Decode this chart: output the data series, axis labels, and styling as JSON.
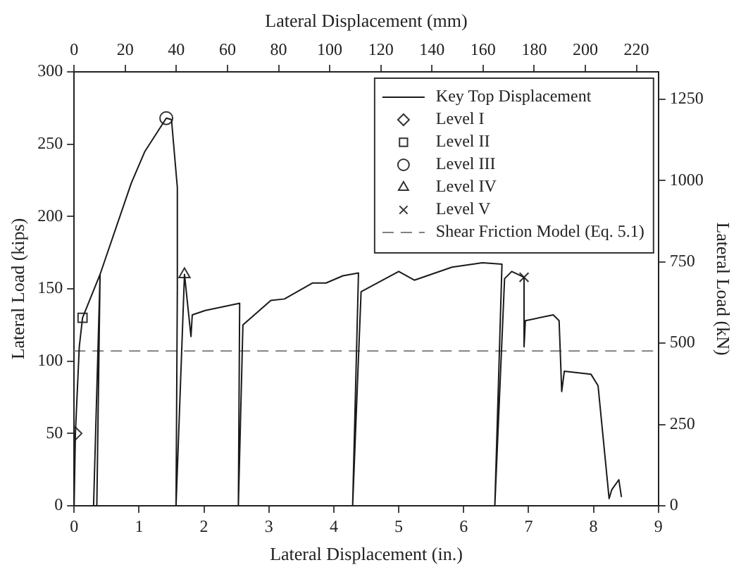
{
  "chart_data": {
    "type": "line",
    "xlabel": "Lateral Displacement (in.)",
    "ylabel": "Lateral Load (kips)",
    "x2label": "Lateral Displacement (mm)",
    "y2label": "Lateral Load (kN)",
    "xlim": [
      0,
      9
    ],
    "xticks": [
      0,
      1,
      2,
      3,
      4,
      5,
      6,
      7,
      8,
      9
    ],
    "ylim": [
      0,
      300
    ],
    "yticks": [
      0,
      50,
      100,
      150,
      200,
      250,
      300
    ],
    "x2lim": [
      0,
      228.6
    ],
    "x2ticks": [
      0,
      20,
      40,
      60,
      80,
      100,
      120,
      140,
      160,
      180,
      200,
      220
    ],
    "y2lim": [
      0,
      1334.4
    ],
    "y2ticks": [
      0,
      250,
      500,
      750,
      1000,
      1250
    ],
    "grid": false,
    "legend": "top right",
    "line_style": "solid",
    "series": [
      {
        "name": "Key Top Displacement",
        "type": "line",
        "marker": "none",
        "color": "#1a1a1a",
        "x": [
          0,
          0.02,
          0.08,
          0.13,
          0.4,
          0.3,
          0.35,
          0.4,
          0.88,
          1.09,
          1.42,
          1.5,
          1.59,
          1.59,
          1.57,
          1.7,
          1.8,
          1.82,
          2.02,
          2.55,
          2.53,
          2.6,
          3.03,
          3.24,
          3.67,
          3.88,
          4.14,
          4.38,
          4.29,
          4.42,
          5.0,
          5.24,
          5.82,
          6.29,
          6.59,
          6.48,
          6.63,
          6.74,
          6.93,
          6.93,
          6.95,
          7.38,
          7.47,
          7.51,
          7.55,
          7.96,
          8.07,
          8.24,
          8.28,
          8.39,
          8.43
        ],
        "values": [
          0,
          50,
          110,
          130,
          160,
          0,
          0,
          160,
          223,
          245,
          268,
          267,
          220,
          150,
          0,
          160,
          117,
          132,
          135,
          140,
          0,
          125,
          142,
          143,
          154,
          154,
          159,
          161,
          0,
          148,
          162,
          156,
          165,
          168,
          167,
          0,
          157,
          162,
          158,
          110,
          128,
          132,
          128,
          79,
          93,
          91,
          83,
          5,
          11,
          18,
          6
        ]
      },
      {
        "name": "Level I",
        "type": "scatter",
        "marker": "diamond",
        "color": "#333333",
        "x": [
          0.02
        ],
        "values": [
          50
        ]
      },
      {
        "name": "Level II",
        "type": "scatter",
        "marker": "square",
        "color": "#333333",
        "x": [
          0.13
        ],
        "values": [
          130
        ]
      },
      {
        "name": "Level III",
        "type": "scatter",
        "marker": "circle",
        "color": "#333333",
        "x": [
          1.42
        ],
        "values": [
          268
        ]
      },
      {
        "name": "Level IV",
        "type": "scatter",
        "marker": "triangle",
        "color": "#333333",
        "x": [
          1.7
        ],
        "values": [
          160
        ]
      },
      {
        "name": "Level V",
        "type": "scatter",
        "marker": "cross",
        "color": "#333333",
        "x": [
          6.93
        ],
        "values": [
          158
        ]
      }
    ],
    "ref_lines": [
      {
        "axis": "y",
        "value": 107,
        "label": "Shear Friction Model (Eq. 5.1)",
        "color": "#808080",
        "line_style": "dashed"
      }
    ]
  }
}
